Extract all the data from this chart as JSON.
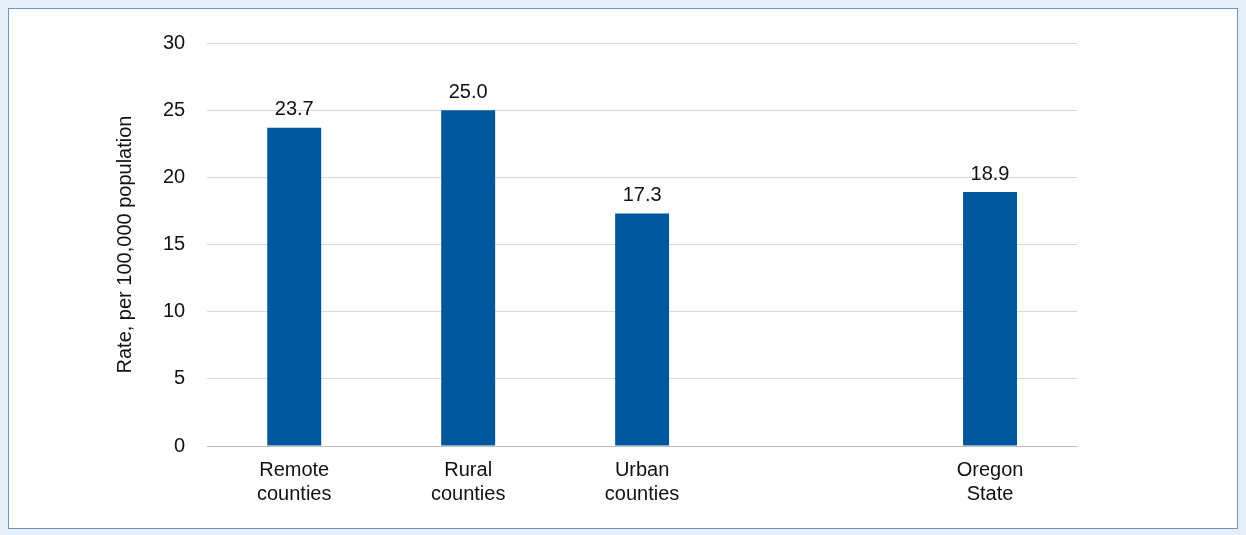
{
  "chart_data": {
    "type": "bar",
    "ylabel": "Rate, per 100,000 population",
    "categories": [
      "Remote counties",
      "Rural counties",
      "Urban counties",
      null,
      "Oregon State"
    ],
    "values": [
      23.7,
      25.0,
      17.3,
      null,
      18.9
    ],
    "value_labels": [
      "23.7",
      "25.0",
      "17.3",
      null,
      "18.9"
    ],
    "color": "#00579b",
    "ylim": [
      0,
      30
    ],
    "yticks": [
      0,
      5,
      10,
      15,
      20,
      25,
      30
    ],
    "grid": "y",
    "legend": false
  }
}
